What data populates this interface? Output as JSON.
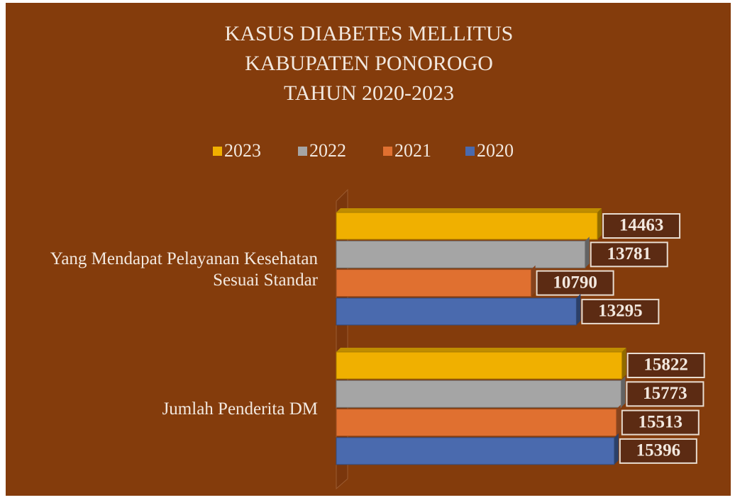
{
  "chart_data": {
    "type": "bar",
    "orientation": "horizontal",
    "title": [
      "KASUS DIABETES MELLITUS",
      "KABUPATEN PONOROGO",
      "TAHUN 2020-2023"
    ],
    "categories": [
      "Yang Mendapat Pelayanan Kesehatan Sesuai Standar",
      "Jumlah Penderita DM"
    ],
    "series": [
      {
        "name": "2023",
        "color": "#f0b000",
        "values": [
          14463,
          15822
        ]
      },
      {
        "name": "2022",
        "color": "#a5a5a5",
        "values": [
          13781,
          15773
        ]
      },
      {
        "name": "2021",
        "color": "#e07030",
        "values": [
          10790,
          15513
        ]
      },
      {
        "name": "2020",
        "color": "#4a6aae",
        "values": [
          13295,
          15396
        ]
      }
    ],
    "xlim": [
      0,
      20000
    ],
    "legend": "top",
    "background": "#843c0c"
  }
}
